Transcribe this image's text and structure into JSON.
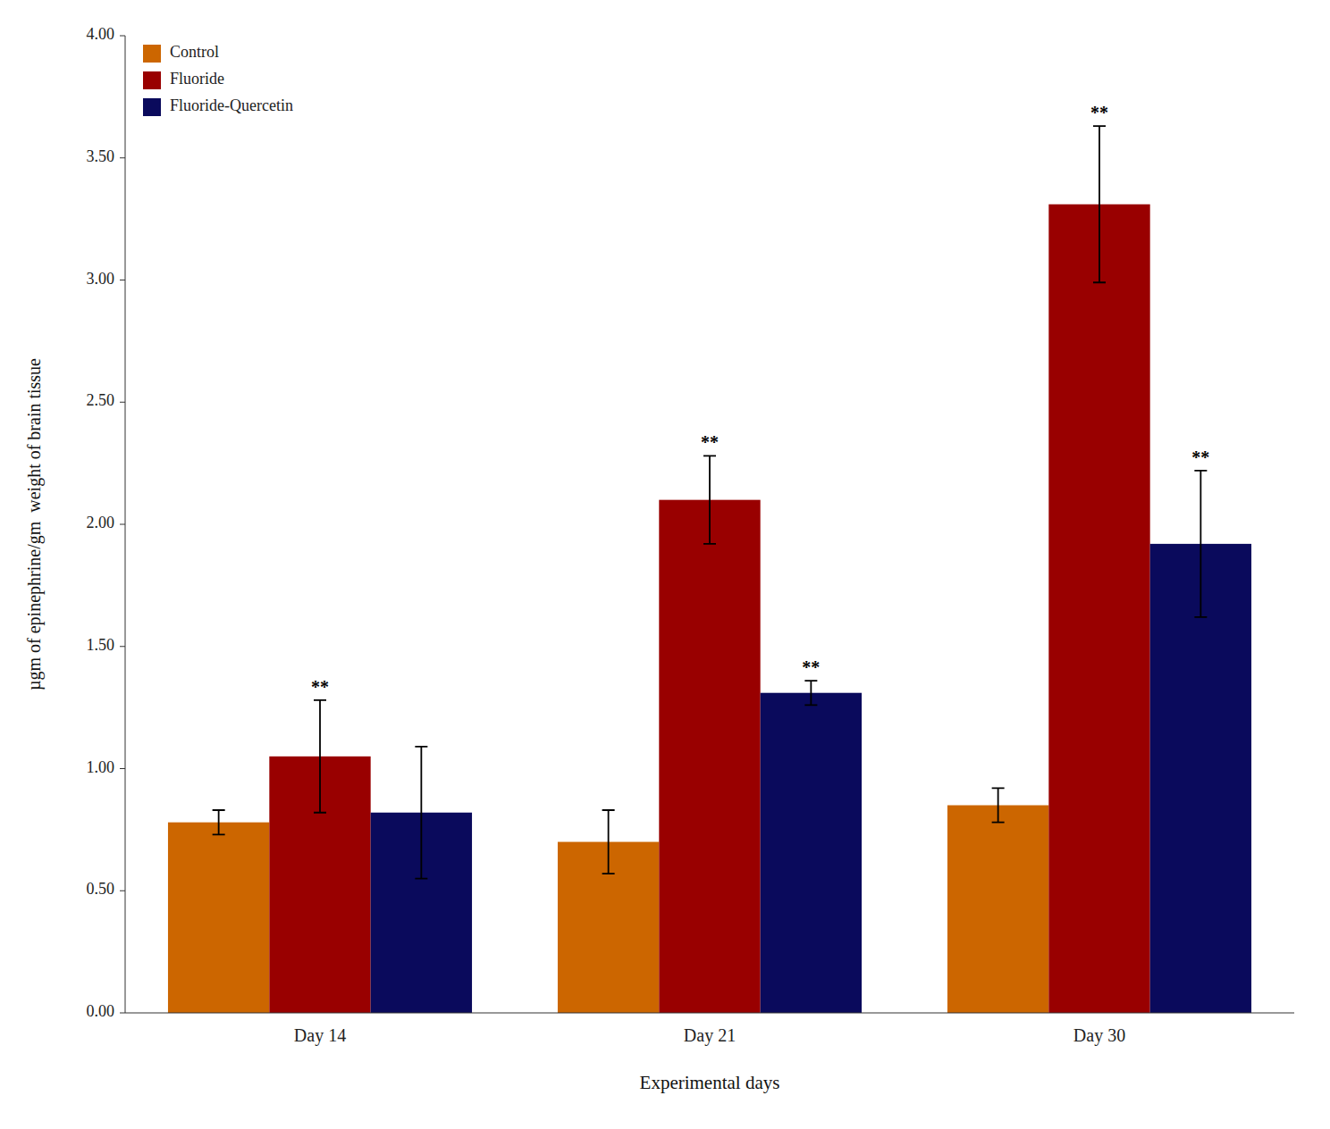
{
  "chart_data": {
    "type": "bar",
    "categories": [
      "Day 14",
      "Day 21",
      "Day 30"
    ],
    "series": [
      {
        "name": "Control",
        "color": "#CC6600",
        "values": [
          0.78,
          0.7,
          0.85
        ],
        "errors": [
          0.05,
          0.13,
          0.07
        ]
      },
      {
        "name": "Fluoride",
        "color": "#990000",
        "values": [
          1.05,
          2.1,
          3.31
        ],
        "errors": [
          0.23,
          0.18,
          0.32
        ],
        "significance": [
          "**",
          "**",
          "**"
        ]
      },
      {
        "name": "Fluoride-Quercetin",
        "color": "#0A0A5C",
        "values": [
          0.82,
          1.31,
          1.92
        ],
        "errors": [
          0.27,
          0.05,
          0.3
        ],
        "significance": [
          null,
          "**",
          "**"
        ]
      }
    ],
    "ylim": [
      0.0,
      4.0
    ],
    "yticks": [
      {
        "value": 0.0,
        "label": "0.00"
      },
      {
        "value": 0.5,
        "label": "0.50"
      },
      {
        "value": 1.0,
        "label": "1.00"
      },
      {
        "value": 1.5,
        "label": "1.50"
      },
      {
        "value": 2.0,
        "label": "2.00"
      },
      {
        "value": 2.5,
        "label": "2.50"
      },
      {
        "value": 3.0,
        "label": "3.00"
      },
      {
        "value": 3.5,
        "label": "3.50"
      },
      {
        "value": 4.0,
        "label": "4.00"
      }
    ],
    "ylabel": "µgm of epinephrine/gm  weight of brain tissue",
    "xlabel": "Experimental days",
    "legend": "upper left",
    "grid": false
  }
}
